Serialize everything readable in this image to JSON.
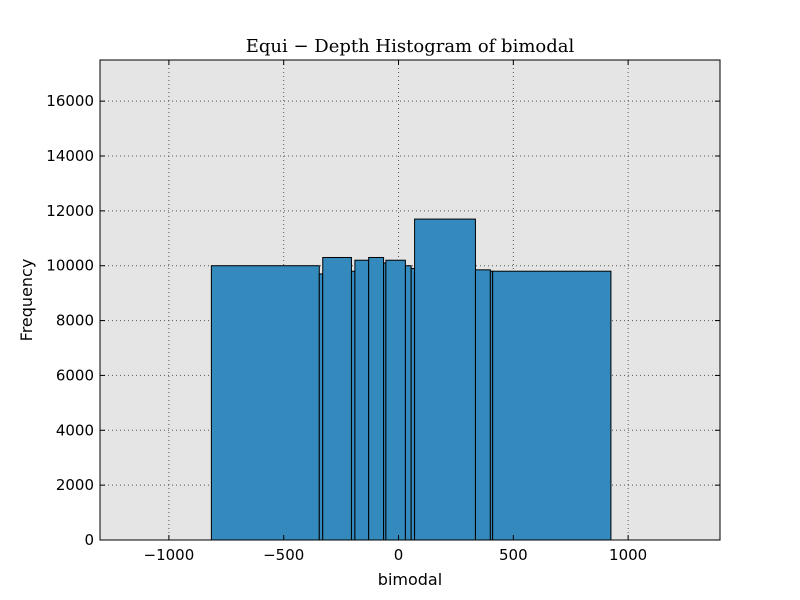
{
  "chart_data": {
    "type": "bar",
    "title": "Equi − Depth Histogram of bimodal",
    "xlabel": "bimodal",
    "ylabel": "Frequency",
    "xlim": [
      -1300,
      1400
    ],
    "ylim": [
      0,
      17500
    ],
    "xticks": [
      -1000,
      -500,
      0,
      500,
      1000
    ],
    "xtick_labels": [
      "−1000",
      "−500",
      "0",
      "500",
      "1000"
    ],
    "yticks": [
      0,
      2000,
      4000,
      6000,
      8000,
      10000,
      12000,
      14000,
      16000
    ],
    "ytick_labels": [
      "0",
      "2000",
      "4000",
      "6000",
      "8000",
      "10000",
      "12000",
      "14000",
      "16000"
    ],
    "grid": true,
    "bins": [
      {
        "left": -815,
        "right": -345,
        "value": 10000
      },
      {
        "left": -345,
        "right": -330,
        "value": 9700
      },
      {
        "left": -330,
        "right": -205,
        "value": 10300
      },
      {
        "left": -205,
        "right": -190,
        "value": 9800
      },
      {
        "left": -190,
        "right": -130,
        "value": 10200
      },
      {
        "left": -130,
        "right": -65,
        "value": 10300
      },
      {
        "left": -65,
        "right": -55,
        "value": 10100
      },
      {
        "left": -55,
        "right": 30,
        "value": 10200
      },
      {
        "left": 30,
        "right": 55,
        "value": 10000
      },
      {
        "left": 55,
        "right": 70,
        "value": 9900
      },
      {
        "left": 70,
        "right": 335,
        "value": 11700
      },
      {
        "left": 335,
        "right": 400,
        "value": 9850
      },
      {
        "left": 400,
        "right": 410,
        "value": 9800
      },
      {
        "left": 410,
        "right": 925,
        "value": 9800
      }
    ],
    "colors": {
      "bar_fill": "#348ABD",
      "bar_edge": "#000000",
      "plot_bg": "#E5E5E5",
      "grid": "#555555"
    }
  }
}
